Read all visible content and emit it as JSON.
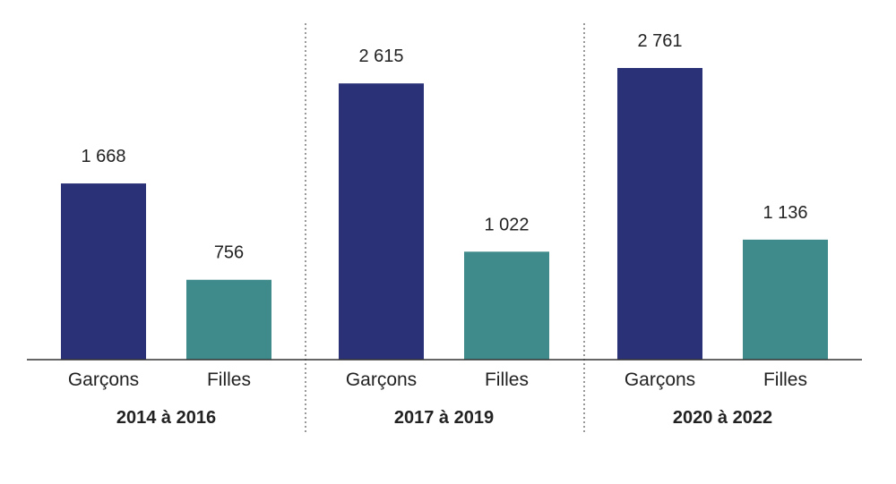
{
  "chart_data": {
    "type": "bar",
    "title": "",
    "xlabel": "",
    "ylabel": "",
    "ylim": [
      0,
      2761
    ],
    "grid": false,
    "legend": "none",
    "value_label_format": "space-thousands",
    "groups": [
      {
        "label": "2014 à 2016",
        "bars": [
          {
            "category": "Garçons",
            "value": 1668,
            "label": "1 668"
          },
          {
            "category": "Filles",
            "value": 756,
            "label": "756"
          }
        ]
      },
      {
        "label": "2017 à 2019",
        "bars": [
          {
            "category": "Garçons",
            "value": 2615,
            "label": "2 615"
          },
          {
            "category": "Filles",
            "value": 1022,
            "label": "1 022"
          }
        ]
      },
      {
        "label": "2020 à 2022",
        "bars": [
          {
            "category": "Garçons",
            "value": 2761,
            "label": "2 761"
          },
          {
            "category": "Filles",
            "value": 1136,
            "label": "1 136"
          }
        ]
      }
    ],
    "colors": {
      "Garçons": "#2b3176",
      "Filles": "#3f8a8a"
    },
    "axis_color": "#333333",
    "separator_color": "#555555"
  }
}
